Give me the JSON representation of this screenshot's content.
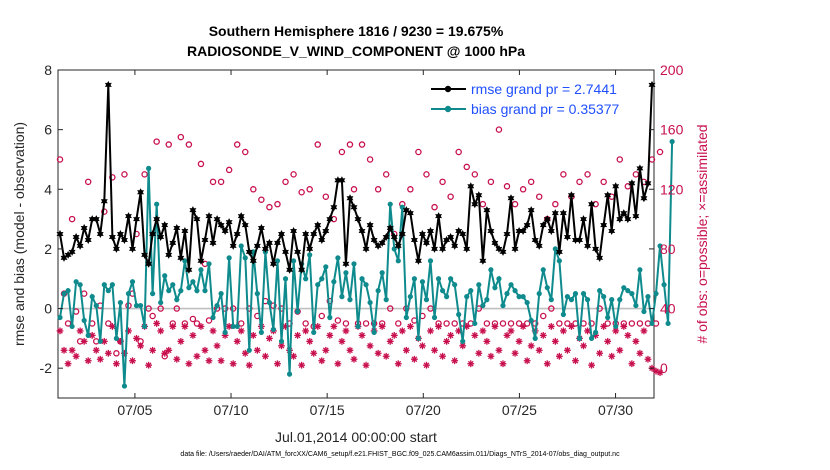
{
  "chart_data": {
    "type": "line",
    "title_line1": "Southern Hemisphere 1816 / 9230 = 19.675%",
    "title_line2": "RADIOSONDE_V_WIND_COMPONENT @ 1000 hPa",
    "xlabel": "Jul.01,2014 00:00:00 start",
    "ylabel": "rmse and bias (model - observation)",
    "ylabel_right": "# of obs: o=possible; ×=assimilated",
    "x_ticks": [
      "07/05",
      "07/10",
      "07/15",
      "07/20",
      "07/25",
      "07/30"
    ],
    "x_tick_days": [
      5,
      10,
      15,
      20,
      25,
      30
    ],
    "xlim": [
      1,
      32
    ],
    "ylim": [
      -3,
      8
    ],
    "y_ticks": [
      "-2",
      "0",
      "2",
      "4",
      "6",
      "8"
    ],
    "y_tick_values": [
      -2,
      0,
      2,
      4,
      6,
      8
    ],
    "ylim_right": [
      -20,
      200
    ],
    "y_ticks_right": [
      "0",
      "40",
      "80",
      "120",
      "160",
      "200"
    ],
    "y_tick_values_right": [
      0,
      40,
      80,
      120,
      160,
      200
    ],
    "zero_line": 0,
    "footnote": "data file: /Users/raeder/DAI/ATM_forcXX/CAM6_setup/f.e21.FHIST_BGC.f09_025.CAM6assim.011/Diags_NTrS_2014-07/obs_diag_output.nc",
    "series": [
      {
        "name": "rmse grand pr = 2.7441",
        "color": "#000000",
        "marker": "hexagram",
        "axis": "left",
        "values": [
          2.5,
          1.7,
          1.8,
          1.9,
          2.4,
          2.1,
          2.7,
          2.3,
          3.0,
          3.0,
          2.5,
          3.6,
          7.5,
          2.4,
          2.0,
          2.5,
          2.3,
          3.1,
          2.0,
          3.0,
          3.9,
          1.8,
          1.5,
          2.5,
          3.0,
          2.4,
          2.8,
          1.8,
          2.2,
          2.7,
          1.7,
          2.6,
          1.3,
          3.3,
          3.0,
          1.6,
          2.3,
          3.1,
          2.2,
          3.0,
          2.8,
          2.6,
          2.9,
          2.1,
          2.5,
          3.1,
          2.8,
          1.9,
          1.6,
          2.1,
          2.7,
          2.0,
          2.2,
          1.5,
          2.2,
          2.5,
          1.9,
          1.3,
          2.6,
          1.9,
          1.3,
          2.5,
          2.0,
          2.5,
          2.8,
          2.3,
          2.6,
          3.0,
          3.4,
          4.3,
          4.3,
          1.5,
          3.7,
          3.4,
          3.0,
          2.6,
          2.0,
          2.8,
          2.3,
          2.1,
          2.2,
          2.4,
          2.7,
          2.4,
          2.1,
          2.5,
          3.3,
          3.2,
          2.3,
          1.6,
          2.5,
          2.2,
          2.6,
          2.0,
          3.1,
          2.0,
          2.3,
          2.4,
          2.1,
          2.6,
          2.5,
          2.0,
          4.1,
          3.5,
          3.8,
          1.6,
          3.3,
          2.6,
          2.2,
          2.0,
          1.9,
          2.5,
          3.7,
          2.0,
          2.6,
          2.6,
          2.8,
          3.3,
          2.3,
          2.1,
          2.8,
          3.0,
          2.6,
          3.2,
          1.9,
          3.2,
          2.4,
          3.8,
          2.3,
          2.3,
          3.0,
          2.1,
          3.5,
          2.0,
          1.7,
          2.8,
          3.8,
          2.6,
          4.1,
          3.0,
          3.2,
          3.0,
          4.2,
          3.1,
          4.7,
          3.7,
          4.2,
          7.5
        ]
      },
      {
        "name": "bias grand pr = 0.35377",
        "color": "#0f8b8d",
        "marker": "circle",
        "axis": "left",
        "values": [
          -0.3,
          0.5,
          0.6,
          -0.6,
          0.9,
          0.8,
          -0.4,
          -0.9,
          0.4,
          0.1,
          -1.1,
          0.8,
          0.6,
          0.8,
          -1.0,
          0.2,
          -2.6,
          0.5,
          0.9,
          0.1,
          0.1,
          -0.6,
          4.7,
          0.5,
          3.5,
          0.2,
          1.1,
          0.6,
          0.8,
          0.3,
          0.6,
          1.6,
          0.7,
          0.9,
          0.6,
          1.3,
          0.6,
          1.5,
          -0.3,
          0.1,
          0.5,
          -0.8,
          1.7,
          -0.6,
          -0.6,
          2.1,
          1.7,
          -1.4,
          1.9,
          0.5,
          -0.8,
          1.9,
          0.2,
          -0.7,
          1.6,
          -1.1,
          1.0,
          -2.2,
          1.6,
          -0.1,
          1.5,
          1.0,
          1.8,
          -0.8,
          0.8,
          1.0,
          1.4,
          -0.3,
          0.9,
          1.7,
          0.4,
          1.2,
          0.3,
          1.5,
          -0.6,
          1.0,
          0.8,
          0.2,
          -0.8,
          0.6,
          1.2,
          0.3,
          3.5,
          2.0,
          1.6,
          3.4,
          -0.3,
          0.4,
          1.0,
          -1.0,
          0.9,
          0.3,
          1.6,
          -0.3,
          1.0,
          0.6,
          0.4,
          1.0,
          0.8,
          -0.2,
          -1.1,
          0.4,
          0.6,
          -0.5,
          0.8,
          0.1,
          0.3,
          1.3,
          0.7,
          1.0,
          0.1,
          0.5,
          0.8,
          0.6,
          0.4,
          0.4,
          0.2,
          -0.4,
          -1.0,
          0.5,
          1.3,
          0.7,
          0.3,
          2.0,
          1.6,
          -0.2,
          0.4,
          0.3,
          0.5,
          -1.0,
          0.5,
          0.3,
          -1.0,
          -0.8,
          0.6,
          0.4,
          -0.3,
          0.3,
          -0.6,
          0.3,
          0.7,
          0.6,
          0.5,
          0.1,
          1.3,
          -0.1,
          0.4,
          -0.5,
          0.5,
          2.1,
          0.8,
          -0.5,
          5.6
        ]
      },
      {
        "name": "possible",
        "color": "#c8104f",
        "marker": "open-circle",
        "axis": "right",
        "values": [
          140,
          50,
          30,
          100,
          38,
          18,
          50,
          125,
          30,
          18,
          42,
          105,
          30,
          128,
          10,
          18,
          130,
          42,
          50,
          90,
          18,
          130,
          40,
          35,
          152,
          40,
          8,
          150,
          30,
          40,
          155,
          30,
          150,
          33,
          30,
          137,
          70,
          32,
          125,
          40,
          125,
          40,
          133,
          40,
          150,
          30,
          145,
          40,
          120,
          35,
          113,
          45,
          108,
          42,
          110,
          40,
          125,
          30,
          130,
          38,
          118,
          30,
          120,
          28,
          150,
          35,
          115,
          45,
          100,
          32,
          145,
          30,
          150,
          120,
          30,
          150,
          30,
          140,
          30,
          120,
          30,
          130,
          40,
          90,
          30,
          110,
          40,
          120,
          32,
          145,
          35,
          130,
          40,
          108,
          30,
          125,
          30,
          115,
          30,
          145,
          30,
          135,
          30,
          130,
          40,
          110,
          30,
          125,
          30,
          160,
          30,
          122,
          30,
          110,
          30,
          120,
          30,
          125,
          30,
          115,
          35,
          100,
          40,
          110,
          30,
          130,
          30,
          115,
          30,
          125,
          30,
          130,
          30,
          110,
          40,
          125,
          30,
          115,
          30,
          140,
          30,
          122,
          30,
          130,
          30,
          125,
          30,
          140,
          30,
          145
        ]
      },
      {
        "name": "assimilated",
        "color": "#c8104f",
        "marker": "asterisk",
        "axis": "right",
        "values": [
          25,
          12,
          3,
          12,
          8,
          25,
          18,
          5,
          22,
          12,
          6,
          18,
          10,
          28,
          3,
          18,
          10,
          25,
          5,
          20,
          15,
          28,
          2,
          12,
          30,
          25,
          10,
          12,
          28,
          6,
          18,
          28,
          3,
          22,
          8,
          28,
          12,
          5,
          25,
          15,
          5,
          22,
          28,
          3,
          18,
          25,
          10,
          2,
          22,
          12,
          28,
          8,
          20,
          25,
          3,
          15,
          28,
          12,
          8,
          22,
          2,
          25,
          18,
          10,
          28,
          5,
          12,
          22,
          28,
          3,
          18,
          25,
          12,
          6,
          28,
          22,
          2,
          15,
          25,
          10,
          28,
          8,
          18,
          22,
          3,
          25,
          12,
          28,
          6,
          20,
          15,
          2,
          25,
          12,
          28,
          8,
          18,
          22,
          5,
          25,
          15,
          28,
          3,
          22,
          10,
          25,
          18,
          8,
          28,
          12,
          3,
          22,
          25,
          10,
          18,
          28,
          5,
          15,
          25,
          12,
          22,
          3,
          28,
          18,
          8,
          25,
          12,
          28,
          5,
          20,
          15,
          25,
          2,
          22,
          10,
          28,
          18,
          8,
          25,
          12,
          28,
          22,
          3,
          18,
          10,
          25,
          6,
          0,
          -2,
          -3
        ]
      }
    ]
  }
}
